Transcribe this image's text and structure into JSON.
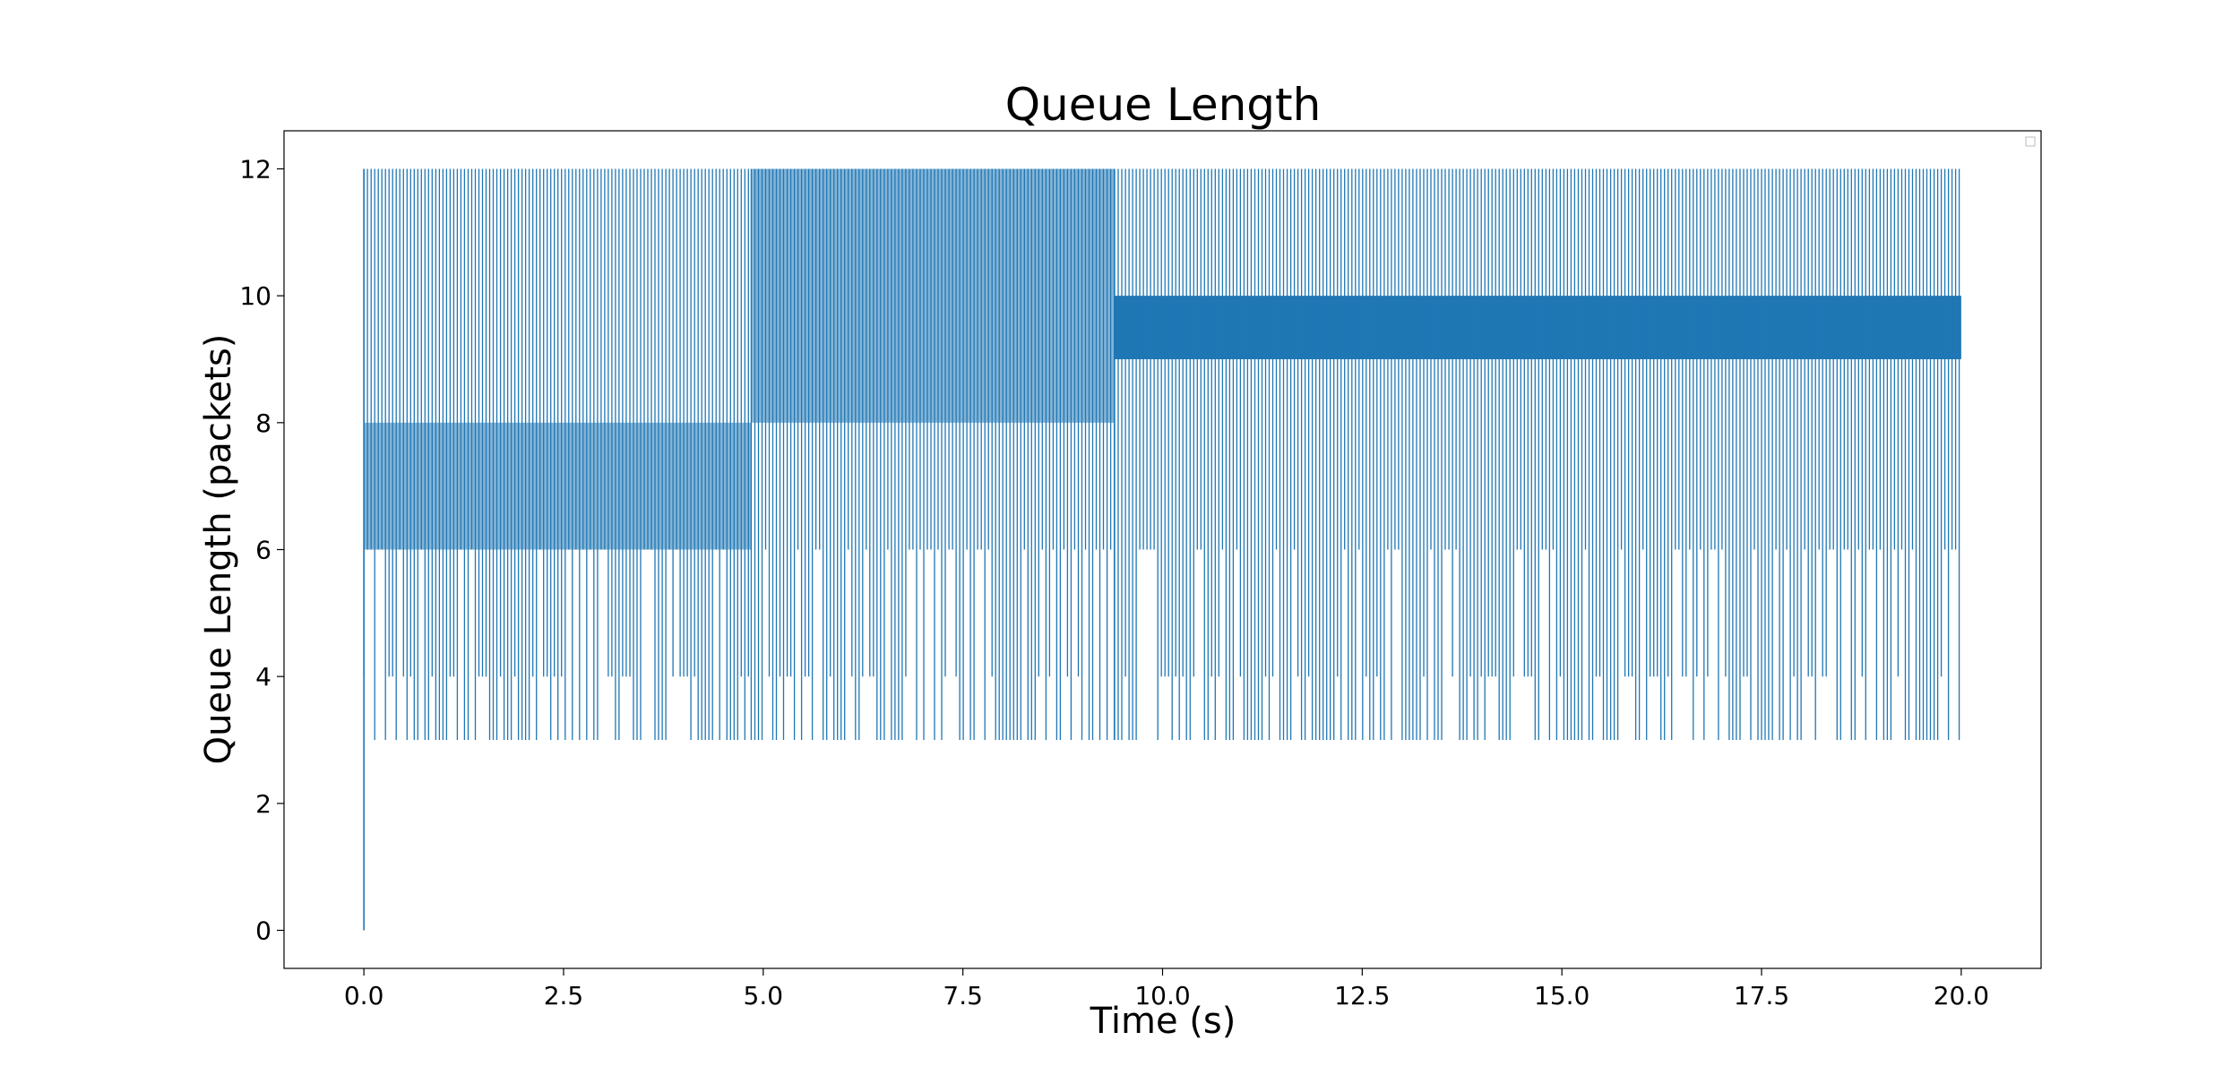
{
  "chart_data": {
    "type": "line",
    "title": "Queue Length",
    "xlabel": "Time (s)",
    "ylabel": "Queue Length (packets)",
    "xlim": [
      -1.0,
      21.0
    ],
    "ylim": [
      -0.6,
      12.6
    ],
    "x_ticks": [
      "0.0",
      "2.5",
      "5.0",
      "7.5",
      "10.0",
      "12.5",
      "15.0",
      "17.5",
      "20.0"
    ],
    "y_ticks": [
      "0",
      "2",
      "4",
      "6",
      "8",
      "10",
      "12"
    ],
    "grid": false,
    "legend": "top-right (empty)",
    "series": [
      {
        "color": "#1f77b4",
        "segments": [
          {
            "t_start": 0.0,
            "t_end": 4.85,
            "min": 3,
            "max": 12,
            "dense_min": 6,
            "dense_max": 8
          },
          {
            "t_start": 4.85,
            "t_end": 9.4,
            "min": 3,
            "max": 12,
            "dense_min": 8,
            "dense_max": 12
          },
          {
            "t_start": 9.4,
            "t_end": 20.0,
            "min": 3,
            "max": 12,
            "dense_min": 9,
            "dense_max": 10
          }
        ],
        "initial": {
          "t": 0.0,
          "value": 0
        }
      }
    ]
  }
}
